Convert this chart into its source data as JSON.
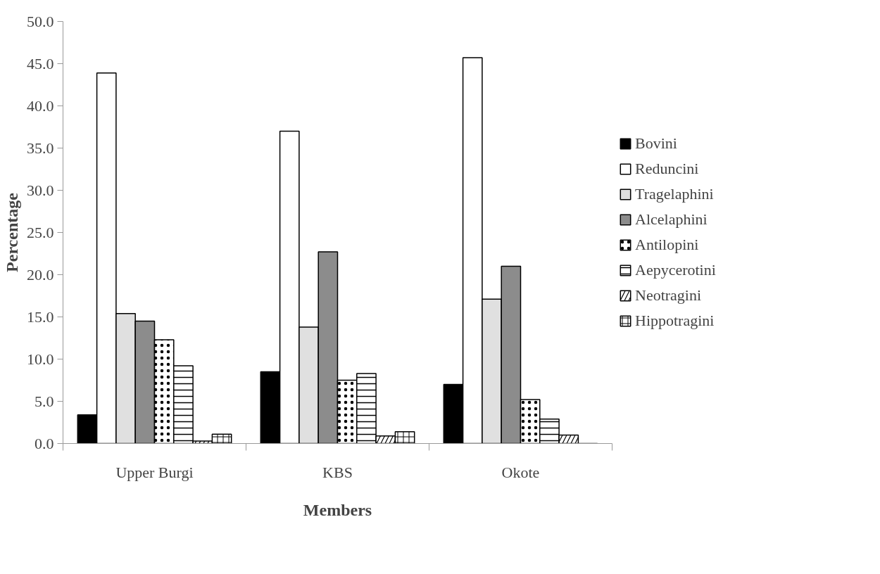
{
  "chart_data": {
    "type": "bar",
    "xlabel": "Members",
    "ylabel": "Percentage",
    "categories": [
      "Upper Burgi",
      "KBS",
      "Okote"
    ],
    "series": [
      {
        "name": "Bovini",
        "color": "#000000",
        "values": [
          3.4,
          8.5,
          7.0
        ]
      },
      {
        "name": "Reduncini",
        "color": "#ffffff",
        "values": [
          43.9,
          37.0,
          45.7
        ]
      },
      {
        "name": "Tragelaphini",
        "color": "#e0e0e0",
        "values": [
          15.4,
          13.8,
          17.1
        ]
      },
      {
        "name": "Alcelaphini",
        "color": "#8c8c8c",
        "values": [
          14.5,
          22.7,
          21.0
        ]
      },
      {
        "name": "Antilopini",
        "color": "#ffffff",
        "values": [
          12.3,
          7.5,
          5.2
        ]
      },
      {
        "name": "Aepycerotini",
        "color": "#ffffff",
        "values": [
          9.2,
          8.3,
          2.9
        ]
      },
      {
        "name": "Neotragini",
        "color": "#ffffff",
        "values": [
          0.3,
          0.9,
          1.0
        ]
      },
      {
        "name": "Hippotragini",
        "color": "#ffffff",
        "values": [
          1.1,
          1.4,
          null
        ]
      }
    ],
    "ylim": [
      0,
      50
    ],
    "yticks": [
      {
        "value": 0,
        "label": "0.0"
      },
      {
        "value": 5,
        "label": "5.0"
      },
      {
        "value": 10,
        "label": "10.0"
      },
      {
        "value": 15,
        "label": "15.0"
      },
      {
        "value": 20,
        "label": "20.0"
      },
      {
        "value": 25,
        "label": "25.0"
      },
      {
        "value": 30,
        "label": "30.0"
      },
      {
        "value": 35,
        "label": "35.0"
      },
      {
        "value": 40,
        "label": "40.0"
      },
      {
        "value": 45,
        "label": "45.0"
      },
      {
        "value": 50,
        "label": "50.0"
      }
    ],
    "grid": false,
    "legend": "right"
  }
}
